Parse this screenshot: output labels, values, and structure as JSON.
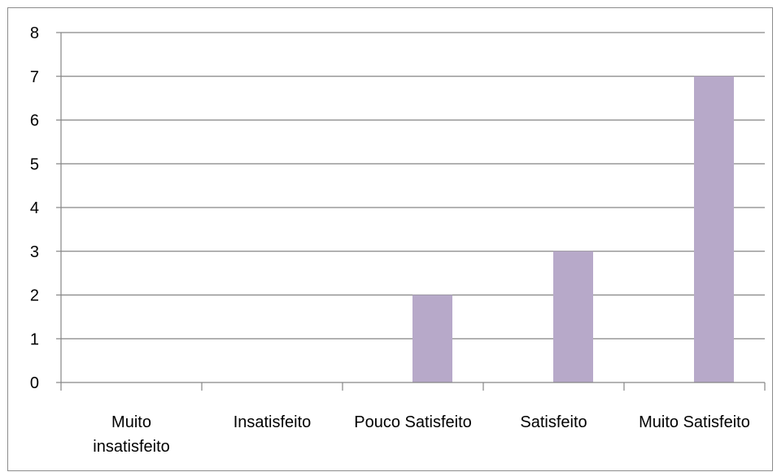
{
  "chart_data": {
    "type": "bar",
    "categories": [
      [
        "Muito",
        "insatisfeito"
      ],
      [
        "Insatisfeito"
      ],
      [
        "Pouco Satisfeito"
      ],
      [
        "Satisfeito"
      ],
      [
        "Muito Satisfeito"
      ]
    ],
    "values": [
      0,
      0,
      2,
      3,
      7
    ],
    "ylim": [
      0,
      8
    ],
    "yticks": [
      0,
      1,
      2,
      3,
      4,
      5,
      6,
      7,
      8
    ],
    "grid": true,
    "legend": "none",
    "bar_color": "#b7a9c9",
    "grid_color": "#868686"
  }
}
